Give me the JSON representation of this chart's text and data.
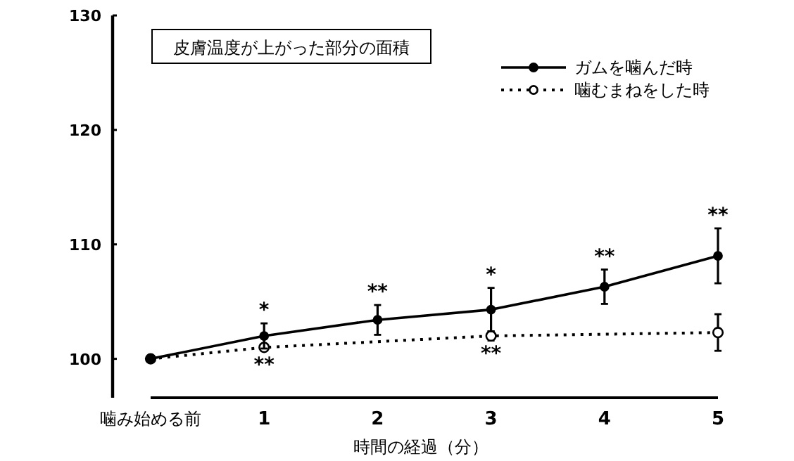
{
  "chart_data": {
    "type": "line",
    "title": "皮膚温度が上がった部分の面積",
    "xlabel": "時間の経過（分）",
    "categories": [
      "噛み始める前",
      "1",
      "2",
      "3",
      "4",
      "5"
    ],
    "ylim": [
      96.6,
      130
    ],
    "yticks": [
      100,
      110,
      120,
      130
    ],
    "legend": "top right",
    "marker": "circle",
    "series": [
      {
        "name": "ガムを噛んだ時",
        "color": "#000000",
        "line_style": "solid",
        "values": [
          100,
          102.0,
          103.4,
          104.3,
          106.3,
          109.0
        ],
        "errors": [
          null,
          1.1,
          1.3,
          1.9,
          1.5,
          2.4
        ]
      },
      {
        "name": "噛むまねをした時",
        "color": "#000000",
        "line_style": "dotted",
        "values": [
          100,
          101.0,
          null,
          102.0,
          null,
          102.3
        ],
        "errors": [
          null,
          null,
          null,
          0.4,
          null,
          1.6
        ]
      }
    ],
    "annotations": [
      {
        "text": "*",
        "x": "1",
        "y": 102.0
      },
      {
        "text": "**",
        "x": "2",
        "y": 103.4
      },
      {
        "text": "*",
        "x": "3",
        "y": 104.3
      },
      {
        "text": "**",
        "x": "4",
        "y": 106.3
      },
      {
        "text": "**",
        "x": "5",
        "y": 109.0
      },
      {
        "text": "**",
        "x": "1",
        "y": 101.0
      },
      {
        "text": "**",
        "x": "3",
        "y": 102.0
      }
    ]
  }
}
